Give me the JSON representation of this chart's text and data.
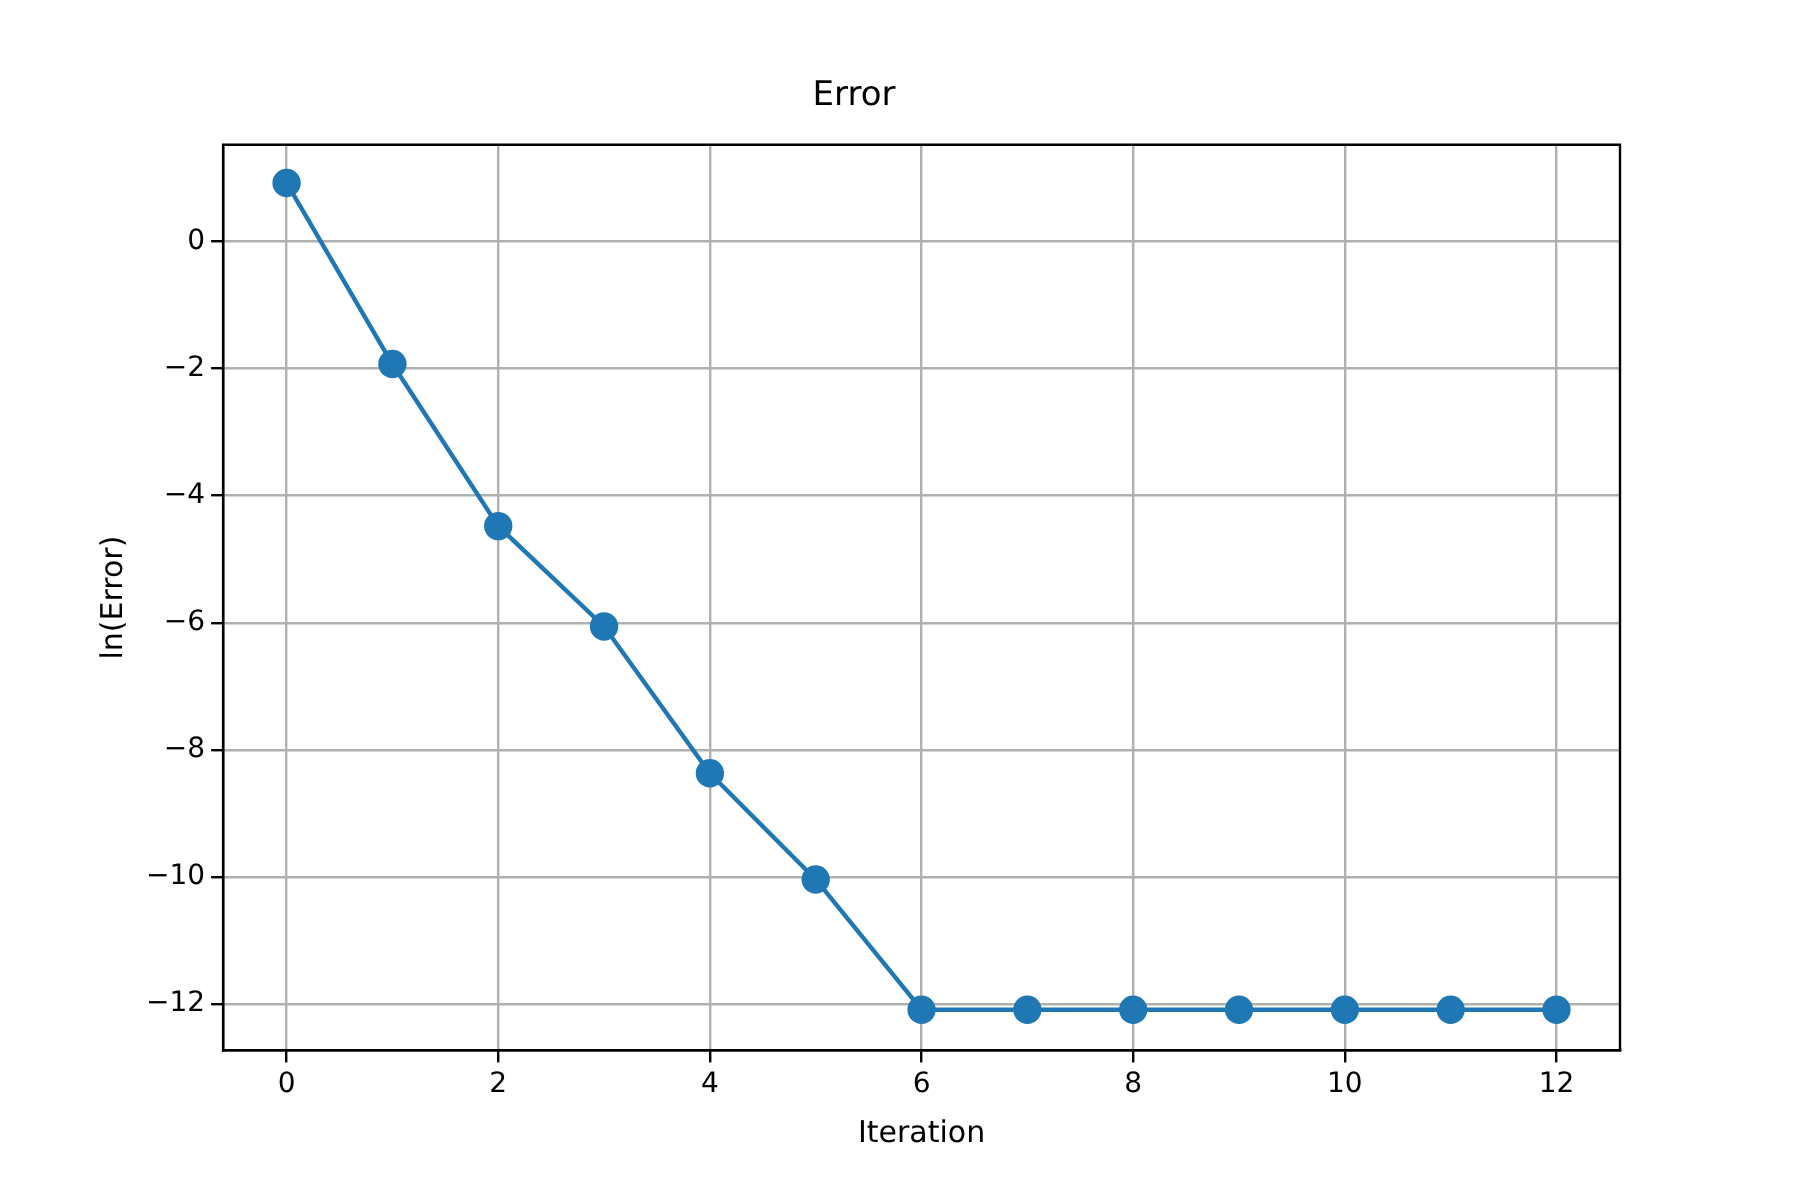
{
  "chart_data": {
    "type": "line",
    "title": "Error",
    "xlabel": "Iteration",
    "ylabel": "ln(Error)",
    "x": [
      0,
      1,
      2,
      3,
      4,
      5,
      6,
      7,
      8,
      9,
      10,
      11,
      12
    ],
    "series": [
      {
        "color": "#1f77b4",
        "values": [
          0.92,
          -1.93,
          -4.48,
          -6.06,
          -8.37,
          -10.04,
          -12.09,
          -12.09,
          -12.09,
          -12.09,
          -12.09,
          -12.09,
          -12.09
        ]
      }
    ],
    "xlim": [
      -0.6,
      12.6
    ],
    "xticks": [
      0,
      2,
      4,
      6,
      8,
      10,
      12
    ],
    "ylim": [
      -12.73,
      1.52
    ],
    "yticks": [
      -12,
      -10,
      -8,
      -6,
      -4,
      -2,
      0
    ],
    "grid": true,
    "marker": "circle",
    "line_style": "solid"
  }
}
